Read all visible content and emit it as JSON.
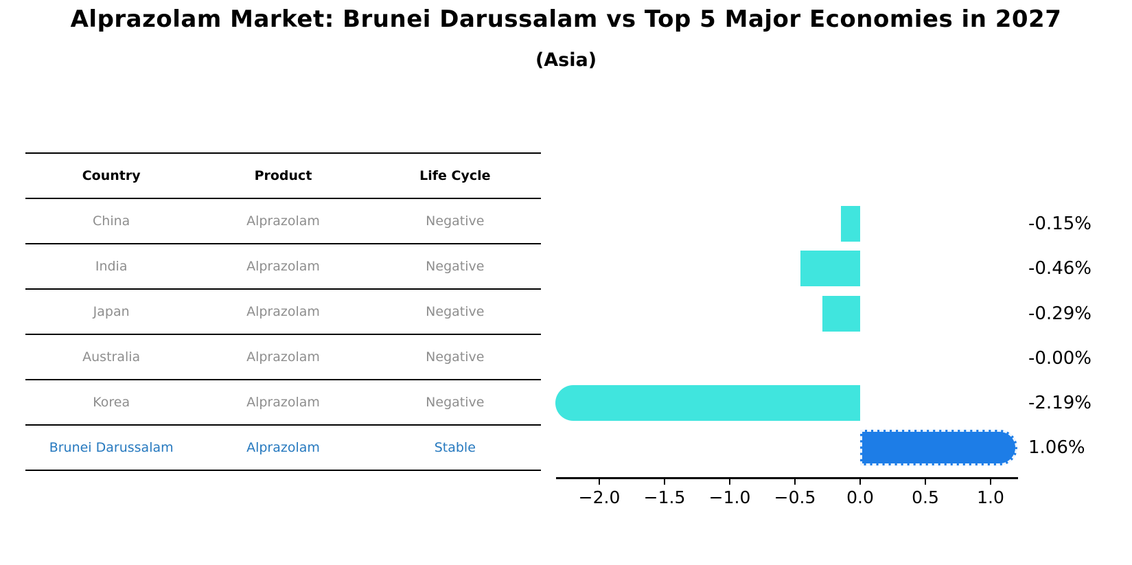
{
  "title": "Alprazolam Market: Brunei Darussalam vs Top 5 Major Economies in 2027",
  "subtitle": "(Asia)",
  "table": {
    "headers": {
      "country": "Country",
      "product": "Product",
      "life_cycle": "Life Cycle"
    },
    "rows": [
      {
        "country": "China",
        "product": "Alprazolam",
        "life_cycle": "Negative"
      },
      {
        "country": "India",
        "product": "Alprazolam",
        "life_cycle": "Negative"
      },
      {
        "country": "Japan",
        "product": "Alprazolam",
        "life_cycle": "Negative"
      },
      {
        "country": "Australia",
        "product": "Alprazolam",
        "life_cycle": "Negative"
      },
      {
        "country": "Korea",
        "product": "Alprazolam",
        "life_cycle": "Negative"
      },
      {
        "country": "Brunei Darussalam",
        "product": "Alprazolam",
        "life_cycle": "Stable"
      }
    ]
  },
  "chart_data": {
    "type": "bar",
    "orientation": "horizontal",
    "title": "Alprazolam Market: Brunei Darussalam vs Top 5 Major Economies in 2027 (Asia)",
    "categories": [
      "China",
      "India",
      "Japan",
      "Australia",
      "Korea",
      "Brunei Darussalam"
    ],
    "values": [
      -0.15,
      -0.46,
      -0.29,
      -0.0,
      -2.19,
      1.06
    ],
    "value_labels": [
      "-0.15%",
      "-0.46%",
      "-0.29%",
      "-0.00%",
      "-2.19%",
      "1.06%"
    ],
    "highlight_index": 5,
    "caps": [
      null,
      null,
      null,
      null,
      "left",
      "right"
    ],
    "x_tick_values": [
      -2.0,
      -1.5,
      -1.0,
      -0.5,
      0.0,
      0.5,
      1.0
    ],
    "x_tick_labels": [
      "−2.0",
      "−1.5",
      "−1.0",
      "−0.5",
      "0.0",
      "0.5",
      "1.0"
    ],
    "xlim": [
      -2.35,
      1.25
    ],
    "xlabel": "",
    "ylabel": "",
    "grid": false,
    "legend": false,
    "colors": {
      "bar": "#40E5DE",
      "highlight_bar": "#1D7DE7",
      "highlight_text": "#2679BF",
      "muted_text": "#8E8E8E"
    }
  }
}
